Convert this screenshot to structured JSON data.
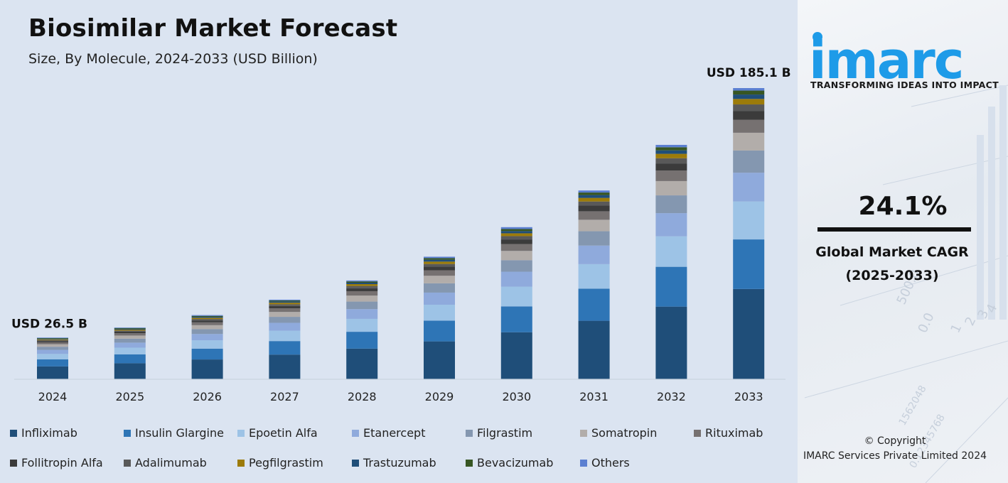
{
  "title": "Biosimilar Market Forecast",
  "subtitle": "Size, By Molecule, 2024-2033 (USD Billion)",
  "first_total_label": "USD 26.5 B",
  "last_total_label": "USD 185.1 B",
  "cagr": {
    "value": "24.1%",
    "label": "Global Market CAGR",
    "period": "(2025-2033)"
  },
  "brand": {
    "logo_text": "imarc",
    "tagline": "TRANSFORMING IDEAS INTO IMPACT",
    "logo_color": "#1e9be8",
    "copyright": "© Copyright",
    "company": "IMARC Services Private Limited 2024"
  },
  "colors": {
    "panel_bg": "#dbe4f1",
    "axis": "#c9d3e0"
  },
  "chart_data": {
    "type": "bar",
    "stacked": true,
    "categories": [
      "2024",
      "2025",
      "2026",
      "2027",
      "2028",
      "2029",
      "2030",
      "2031",
      "2032",
      "2033"
    ],
    "totals": [
      26.5,
      32.9,
      40.8,
      50.6,
      62.8,
      77.9,
      96.7,
      120.0,
      149.0,
      185.1
    ],
    "ylim": [
      0,
      200
    ],
    "legend_position": "bottom",
    "grid": false,
    "series": [
      {
        "name": "Infliximab",
        "color": "#1f4e79",
        "values": [
          8.2,
          10.2,
          12.6,
          15.7,
          19.5,
          24.1,
          29.9,
          37.2,
          46.2,
          57.4
        ]
      },
      {
        "name": "Insulin Glargine",
        "color": "#2e75b6",
        "values": [
          4.5,
          5.6,
          6.9,
          8.6,
          10.7,
          13.2,
          16.4,
          20.4,
          25.3,
          31.5
        ]
      },
      {
        "name": "Epoetin Alfa",
        "color": "#9dc3e6",
        "values": [
          3.4,
          4.3,
          5.3,
          6.6,
          8.2,
          10.1,
          12.6,
          15.6,
          19.4,
          24.1
        ]
      },
      {
        "name": "Etanercept",
        "color": "#8faadc",
        "values": [
          2.6,
          3.2,
          4.0,
          5.0,
          6.2,
          7.7,
          9.5,
          11.8,
          14.7,
          18.3
        ]
      },
      {
        "name": "Filgrastim",
        "color": "#8497b0",
        "values": [
          2.0,
          2.5,
          3.1,
          3.8,
          4.8,
          5.9,
          7.3,
          9.1,
          11.3,
          14.1
        ]
      },
      {
        "name": "Somatropin",
        "color": "#b2adaa",
        "values": [
          1.6,
          2.0,
          2.5,
          3.1,
          3.8,
          4.8,
          5.9,
          7.3,
          9.1,
          11.3
        ]
      },
      {
        "name": "Rituximab",
        "color": "#767171",
        "values": [
          1.2,
          1.5,
          1.8,
          2.3,
          2.8,
          3.5,
          4.4,
          5.4,
          6.7,
          8.3
        ]
      },
      {
        "name": "Follitropin Alfa",
        "color": "#3b3b3b",
        "values": [
          0.8,
          1.0,
          1.2,
          1.5,
          1.9,
          2.3,
          2.9,
          3.6,
          4.5,
          5.6
        ]
      },
      {
        "name": "Adalimumab",
        "color": "#595959",
        "values": [
          0.6,
          0.7,
          0.9,
          1.1,
          1.4,
          1.7,
          2.1,
          2.6,
          3.3,
          4.1
        ]
      },
      {
        "name": "Pegfilgrastim",
        "color": "#9c7b0a",
        "values": [
          0.5,
          0.6,
          0.8,
          1.0,
          1.2,
          1.5,
          1.8,
          2.3,
          2.8,
          3.5
        ]
      },
      {
        "name": "Trastuzumab",
        "color": "#1f4e79",
        "values": [
          0.4,
          0.5,
          0.6,
          0.8,
          0.9,
          1.2,
          1.4,
          1.8,
          2.2,
          2.8
        ]
      },
      {
        "name": "Bevacizumab",
        "color": "#375623",
        "values": [
          0.4,
          0.5,
          0.6,
          0.6,
          0.8,
          1.0,
          1.3,
          1.6,
          2.0,
          2.5
        ]
      },
      {
        "name": "Others",
        "color": "#5b7fd1",
        "values": [
          0.3,
          0.3,
          0.5,
          0.5,
          0.6,
          0.9,
          1.2,
          1.3,
          1.5,
          1.6
        ]
      }
    ]
  }
}
